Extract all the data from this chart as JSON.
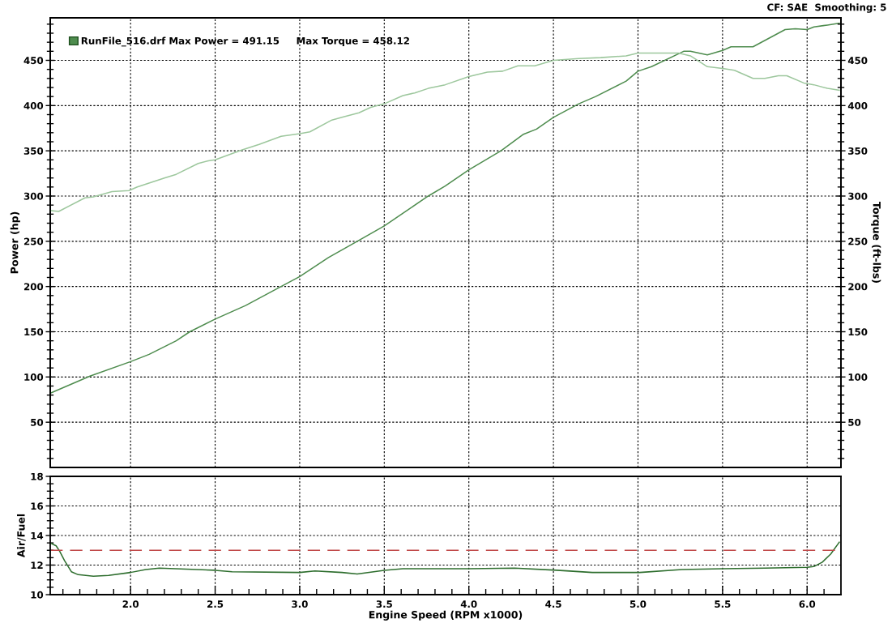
{
  "chart_data": [
    {
      "type": "line",
      "ylabel": "Power (hp)",
      "y2label": "Torque (ft-lbs)",
      "annotations": [
        "CF: SAE  Smoothing: 5"
      ],
      "series": [
        {
          "name": "RunFile_516.drf Max Power = 491.15     Max Torque = 458.12",
          "color": "#4e8c4e",
          "x": [
            1.525,
            1.76,
            2.0,
            2.11,
            2.27,
            2.35,
            2.5,
            2.68,
            2.89,
            3.0,
            3.17,
            3.34,
            3.5,
            3.76,
            3.86,
            4.0,
            4.19,
            4.32,
            4.4,
            4.5,
            4.65,
            4.75,
            4.93,
            5.0,
            5.08,
            5.27,
            5.31,
            5.41,
            5.5,
            5.55,
            5.68,
            5.87,
            5.93,
            6.0,
            6.04,
            6.12,
            6.19
          ],
          "values": [
            82,
            101,
            117,
            125,
            140,
            150,
            164,
            179,
            200,
            211,
            232,
            250,
            267,
            300,
            311,
            329,
            350,
            368,
            374,
            387,
            402,
            410,
            427,
            438,
            443,
            460,
            460,
            456,
            461,
            465,
            465,
            484,
            485,
            484,
            487,
            489,
            491
          ]
        },
        {
          "color": "#9dc79d",
          "axis": "y2",
          "x": [
            1.525,
            1.575,
            1.73,
            1.78,
            1.89,
            1.99,
            2.04,
            2.12,
            2.2,
            2.27,
            2.4,
            2.46,
            2.5,
            2.66,
            2.76,
            2.89,
            3.0,
            3.06,
            3.19,
            3.25,
            3.35,
            3.42,
            3.5,
            3.61,
            3.68,
            3.76,
            3.86,
            4.0,
            4.11,
            4.2,
            4.29,
            4.39,
            4.5,
            4.65,
            4.78,
            4.93,
            5.0,
            5.11,
            5.24,
            5.31,
            5.41,
            5.5,
            5.57,
            5.68,
            5.75,
            5.83,
            5.88,
            5.98,
            6.04,
            6.12,
            6.19
          ],
          "values": [
            284,
            283,
            298,
            299,
            305,
            306,
            310,
            315,
            320,
            324,
            336,
            339,
            340,
            351,
            357,
            366,
            369,
            371,
            384,
            387,
            392,
            398,
            402,
            411,
            414,
            419,
            423,
            432,
            437,
            438,
            444,
            444,
            450,
            452,
            453,
            455,
            458,
            458,
            458,
            455,
            443,
            441,
            439,
            430,
            430,
            433,
            433,
            425,
            423,
            419,
            417
          ]
        }
      ],
      "xlim": [
        1.525,
        6.2
      ],
      "xticks": [
        2,
        2.5,
        3,
        3.5,
        4,
        4.5,
        5,
        5.5,
        6
      ],
      "ylim": [
        0,
        497
      ],
      "yticks": [
        {
          "value": 10,
          "label": null
        },
        {
          "value": 20,
          "label": null
        },
        {
          "value": 30,
          "label": null
        },
        {
          "value": 40,
          "label": null
        },
        50,
        {
          "value": 60,
          "label": null
        },
        {
          "value": 70,
          "label": null
        },
        {
          "value": 80,
          "label": null
        },
        {
          "value": 90,
          "label": null
        },
        100,
        {
          "value": 110,
          "label": null
        },
        {
          "value": 120,
          "label": null
        },
        {
          "value": 130,
          "label": null
        },
        {
          "value": 140,
          "label": null
        },
        150,
        {
          "value": 160,
          "label": null
        },
        {
          "value": 170,
          "label": null
        },
        {
          "value": 180,
          "label": null
        },
        {
          "value": 190,
          "label": null
        },
        200,
        {
          "value": 210,
          "label": null
        },
        {
          "value": 220,
          "label": null
        },
        {
          "value": 230,
          "label": null
        },
        {
          "value": 240,
          "label": null
        },
        250,
        {
          "value": 260,
          "label": null
        },
        {
          "value": 270,
          "label": null
        },
        {
          "value": 280,
          "label": null
        },
        {
          "value": 290,
          "label": null
        },
        300,
        {
          "value": 310,
          "label": null
        },
        {
          "value": 320,
          "label": null
        },
        {
          "value": 330,
          "label": null
        },
        {
          "value": 340,
          "label": null
        },
        350,
        {
          "value": 360,
          "label": null
        },
        {
          "value": 370,
          "label": null
        },
        {
          "value": 380,
          "label": null
        },
        {
          "value": 390,
          "label": null
        },
        400,
        {
          "value": 410,
          "label": null
        },
        {
          "value": 420,
          "label": null
        },
        {
          "value": 430,
          "label": null
        },
        {
          "value": 440,
          "label": null
        },
        450,
        {
          "value": 460,
          "label": null
        },
        {
          "value": 470,
          "label": null
        },
        {
          "value": 480,
          "label": null
        },
        {
          "value": 490,
          "label": null
        }
      ],
      "y2lim": [
        0,
        497
      ],
      "y2ticks": [
        {
          "value": 10,
          "label": null
        },
        {
          "value": 20,
          "label": null
        },
        {
          "value": 30,
          "label": null
        },
        {
          "value": 40,
          "label": null
        },
        50,
        {
          "value": 60,
          "label": null
        },
        {
          "value": 70,
          "label": null
        },
        {
          "value": 80,
          "label": null
        },
        {
          "value": 90,
          "label": null
        },
        100,
        {
          "value": 110,
          "label": null
        },
        {
          "value": 120,
          "label": null
        },
        {
          "value": 130,
          "label": null
        },
        {
          "value": 140,
          "label": null
        },
        150,
        {
          "value": 160,
          "label": null
        },
        {
          "value": 170,
          "label": null
        },
        {
          "value": 180,
          "label": null
        },
        {
          "value": 190,
          "label": null
        },
        200,
        {
          "value": 210,
          "label": null
        },
        {
          "value": 220,
          "label": null
        },
        {
          "value": 230,
          "label": null
        },
        {
          "value": 240,
          "label": null
        },
        250,
        {
          "value": 260,
          "label": null
        },
        {
          "value": 270,
          "label": null
        },
        {
          "value": 280,
          "label": null
        },
        {
          "value": 290,
          "label": null
        },
        300,
        {
          "value": 310,
          "label": null
        },
        {
          "value": 320,
          "label": null
        },
        {
          "value": 330,
          "label": null
        },
        {
          "value": 340,
          "label": null
        },
        350,
        {
          "value": 360,
          "label": null
        },
        {
          "value": 370,
          "label": null
        },
        {
          "value": 380,
          "label": null
        },
        {
          "value": 390,
          "label": null
        },
        400,
        {
          "value": 410,
          "label": null
        },
        {
          "value": 420,
          "label": null
        },
        {
          "value": 430,
          "label": null
        },
        {
          "value": 440,
          "label": null
        },
        450,
        {
          "value": 460,
          "label": null
        },
        {
          "value": 470,
          "label": null
        },
        {
          "value": 480,
          "label": null
        },
        {
          "value": 490,
          "label": null
        }
      ],
      "grid": true,
      "legend": "top left",
      "tick_labels": "y"
    },
    {
      "type": "line",
      "xlabel": "Engine Speed (RPM x1000)",
      "ylabel": "Air/Fuel",
      "series": [
        {
          "color": "#2e6e2e",
          "x": [
            1.525,
            1.56,
            1.58,
            1.61,
            1.65,
            1.69,
            1.78,
            1.87,
            2.0,
            2.09,
            2.17,
            2.5,
            2.6,
            3.0,
            3.09,
            3.25,
            3.34,
            3.5,
            3.61,
            3.86,
            4.0,
            4.27,
            4.52,
            4.73,
            5.01,
            5.26,
            5.5,
            5.75,
            6.0,
            6.04,
            6.09,
            6.14,
            6.19
          ],
          "values": [
            13.5,
            13.3,
            12.95,
            12.3,
            11.55,
            11.35,
            11.25,
            11.3,
            11.5,
            11.7,
            11.8,
            11.65,
            11.55,
            11.5,
            11.6,
            11.5,
            11.4,
            11.65,
            11.75,
            11.75,
            11.75,
            11.8,
            11.65,
            11.5,
            11.5,
            11.7,
            11.75,
            11.8,
            11.85,
            11.9,
            12.2,
            12.75,
            13.55
          ]
        }
      ],
      "ref_lines": [
        {
          "axis": "y",
          "value": 13,
          "color": "#c04848",
          "line_style": "dashed"
        }
      ],
      "xlim": [
        1.525,
        6.2
      ],
      "xticks": [
        {
          "value": 1.6,
          "label": null
        },
        {
          "value": 1.7,
          "label": null
        },
        {
          "value": 1.8,
          "label": null
        },
        {
          "value": 1.9,
          "label": null
        },
        {
          "value": 2,
          "label": "2.0"
        },
        {
          "value": 2.1,
          "label": null
        },
        {
          "value": 2.2,
          "label": null
        },
        {
          "value": 2.3,
          "label": null
        },
        {
          "value": 2.4,
          "label": null
        },
        2.5,
        {
          "value": 2.6,
          "label": null
        },
        {
          "value": 2.7,
          "label": null
        },
        {
          "value": 2.8,
          "label": null
        },
        {
          "value": 2.9,
          "label": null
        },
        {
          "value": 3,
          "label": "3.0"
        },
        {
          "value": 3.1,
          "label": null
        },
        {
          "value": 3.2,
          "label": null
        },
        {
          "value": 3.3,
          "label": null
        },
        {
          "value": 3.4,
          "label": null
        },
        3.5,
        {
          "value": 3.6,
          "label": null
        },
        {
          "value": 3.7,
          "label": null
        },
        {
          "value": 3.8,
          "label": null
        },
        {
          "value": 3.9,
          "label": null
        },
        {
          "value": 4,
          "label": "4.0"
        },
        {
          "value": 4.1,
          "label": null
        },
        {
          "value": 4.2,
          "label": null
        },
        {
          "value": 4.3,
          "label": null
        },
        {
          "value": 4.4,
          "label": null
        },
        4.5,
        {
          "value": 4.6,
          "label": null
        },
        {
          "value": 4.7,
          "label": null
        },
        {
          "value": 4.8,
          "label": null
        },
        {
          "value": 4.9,
          "label": null
        },
        {
          "value": 5,
          "label": "5.0"
        },
        {
          "value": 5.1,
          "label": null
        },
        {
          "value": 5.2,
          "label": null
        },
        {
          "value": 5.3,
          "label": null
        },
        {
          "value": 5.4,
          "label": null
        },
        5.5,
        {
          "value": 5.6,
          "label": null
        },
        {
          "value": 5.7,
          "label": null
        },
        {
          "value": 5.8,
          "label": null
        },
        {
          "value": 5.9,
          "label": null
        },
        {
          "value": 6,
          "label": "6.0"
        },
        {
          "value": 6.1,
          "label": null
        }
      ],
      "ylim": [
        10,
        18
      ],
      "yticks": [
        10,
        {
          "value": 10.5,
          "label": null
        },
        {
          "value": 11,
          "label": null
        },
        {
          "value": 11.5,
          "label": null
        },
        12,
        {
          "value": 12.5,
          "label": null
        },
        {
          "value": 13,
          "label": null
        },
        {
          "value": 13.5,
          "label": null
        },
        14,
        {
          "value": 14.5,
          "label": null
        },
        {
          "value": 15,
          "label": null
        },
        {
          "value": 15.5,
          "label": null
        },
        16,
        {
          "value": 16.5,
          "label": null
        },
        {
          "value": 17,
          "label": null
        },
        {
          "value": 17.5,
          "label": null
        },
        18
      ],
      "grid": true
    }
  ]
}
